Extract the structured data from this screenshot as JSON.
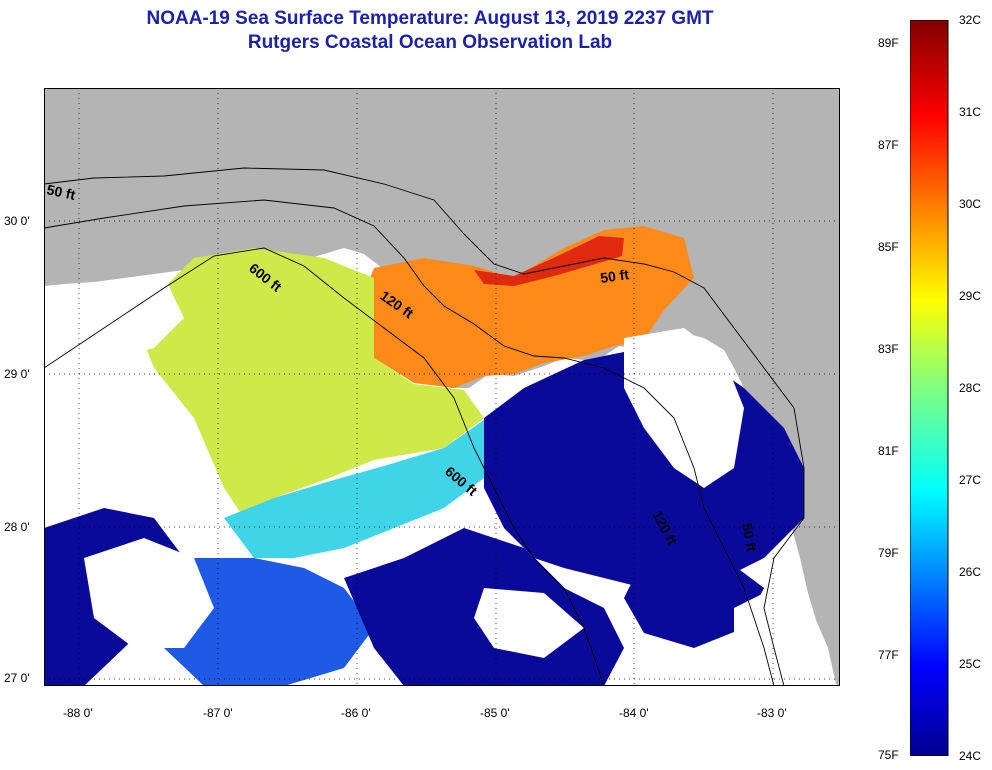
{
  "title": {
    "line1": "NOAA-19 Sea Surface Temperature:  August 13, 2019 2237 GMT",
    "line2": "Rutgers Coastal Ocean Observation Lab"
  },
  "map": {
    "lon_labels": [
      "-88 0'",
      "-87 0'",
      "-86 0'",
      "-85 0'",
      "-84 0'",
      "-83 0'"
    ],
    "lat_labels": [
      "30 0'",
      "29 0'",
      "28 0'",
      "27 0'"
    ],
    "contour_labels": {
      "c50_west": "50 ft",
      "c600_north": "600 ft",
      "c120_center": "120 ft",
      "c50_east": "50 ft",
      "c600_south": "600 ft",
      "c120_south": "120 ft",
      "c50_south": "50 ft"
    },
    "colors": {
      "land": "#b4b4b4",
      "cloud": "#ffffff",
      "contour": "#000000"
    }
  },
  "colorbar": {
    "celsius": [
      "32C",
      "31C",
      "30C",
      "29C",
      "28C",
      "27C",
      "26C",
      "25C",
      "24C"
    ],
    "fahrenheit": [
      "89F",
      "87F",
      "85F",
      "83F",
      "81F",
      "79F",
      "77F",
      "75F"
    ],
    "scale_min_c": 24,
    "scale_max_c": 32
  }
}
